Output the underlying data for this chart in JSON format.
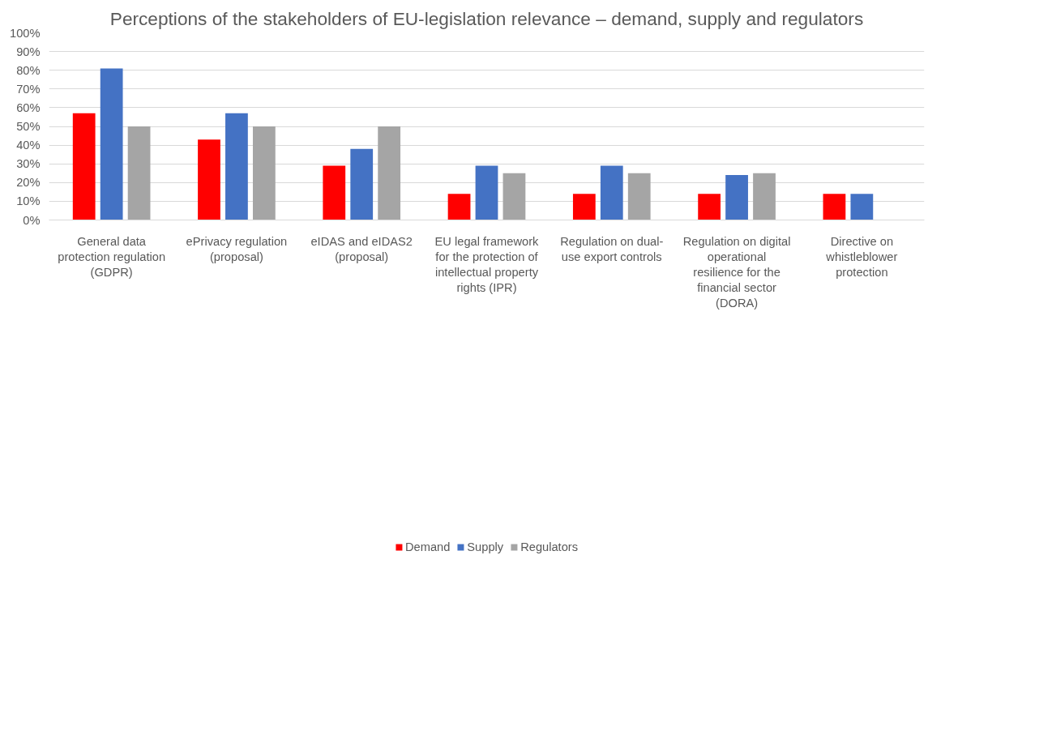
{
  "chart_data": {
    "type": "bar",
    "title": "Perceptions of the stakeholders of EU-legislation relevance – demand, supply and regulators",
    "categories": [
      "General data protection regulation (GDPR)",
      "ePrivacy regulation (proposal)",
      "eIDAS and eIDAS2 (proposal)",
      "EU legal framework for the protection of intellectual property rights (IPR)",
      "Regulation on dual-use export controls",
      "Regulation on digital operational resilience for the financial sector (DORA)",
      "Directive on whistleblower protection"
    ],
    "series": [
      {
        "name": "Demand",
        "color": "#ff0000",
        "values": [
          57,
          43,
          29,
          14,
          14,
          14,
          14
        ]
      },
      {
        "name": "Supply",
        "color": "#4472c4",
        "values": [
          81,
          57,
          38,
          29,
          29,
          24,
          14
        ]
      },
      {
        "name": "Regulators",
        "color": "#a5a5a5",
        "values": [
          50,
          50,
          50,
          25,
          25,
          25,
          null
        ]
      }
    ],
    "ylim": [
      0,
      100
    ],
    "yticks": [
      {
        "value": 0,
        "label": "0%"
      },
      {
        "value": 10,
        "label": "10%"
      },
      {
        "value": 20,
        "label": "20%"
      },
      {
        "value": 30,
        "label": "30%"
      },
      {
        "value": 40,
        "label": "40%"
      },
      {
        "value": 50,
        "label": "50%"
      },
      {
        "value": 60,
        "label": "60%"
      },
      {
        "value": 70,
        "label": "70%"
      },
      {
        "value": 80,
        "label": "80%"
      },
      {
        "value": 90,
        "label": "90%"
      },
      {
        "value": 100,
        "label": "100%"
      }
    ],
    "grid": "y",
    "legend": "bottom"
  }
}
